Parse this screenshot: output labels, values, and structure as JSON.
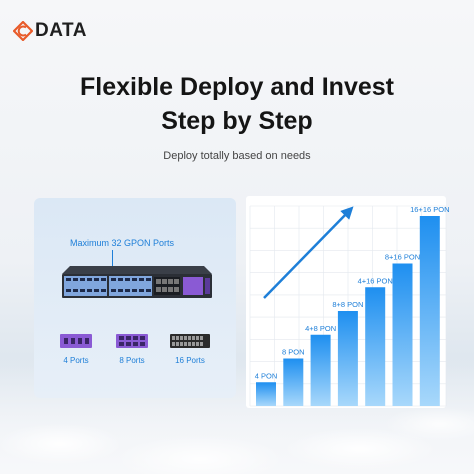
{
  "brand": {
    "logo_text": "DATA",
    "accent": "#e85b2a"
  },
  "headline": {
    "line1": "Flexible Deploy and Invest",
    "line2": "Step by Step"
  },
  "subtitle": "Deploy totally based on needs",
  "product": {
    "max_label": "Maximum 32 GPON Ports",
    "modules": [
      {
        "label": "4 Ports",
        "color": "#8a5ad4",
        "icon": "module-card-icon"
      },
      {
        "label": "8 Ports",
        "color": "#8a5ad4",
        "icon": "module-card-icon"
      },
      {
        "label": "16 Ports",
        "color": "#2b2b2b",
        "icon": "module-card-icon"
      }
    ]
  },
  "chart_data": {
    "type": "bar",
    "categories": [
      "4 PON",
      "8 PON",
      "4+8 PON",
      "8+8 PON",
      "4+16 PON",
      "8+16 PON",
      "16+16 PON"
    ],
    "values": [
      4,
      8,
      12,
      16,
      20,
      24,
      32
    ],
    "title": "",
    "xlabel": "",
    "ylabel": "",
    "ylim": [
      0,
      32
    ],
    "grid": true,
    "colors": {
      "bar_top": "#1e8ff0",
      "bar_bottom": "#a8d8fb",
      "label": "#1e7fd8",
      "arrow": "#1e7fd8"
    }
  }
}
